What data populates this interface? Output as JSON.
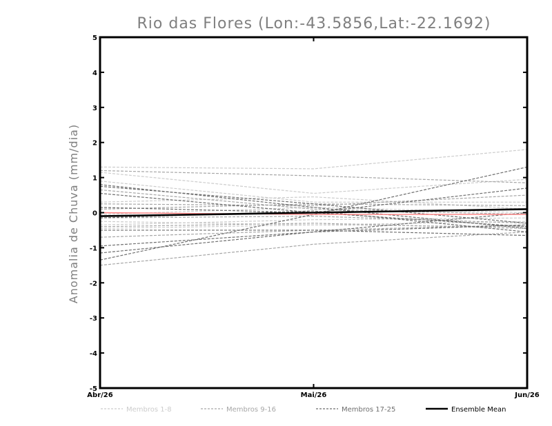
{
  "chart_data": {
    "type": "line",
    "title": "Rio das Flores (Lon:-43.5856,Lat:-22.1692)",
    "xlabel": "",
    "ylabel": "Anomalia de Chuva (mm/dia)",
    "categories": [
      "Abr/26",
      "Mai/26",
      "Jun/26"
    ],
    "ylim": [
      -5,
      5
    ],
    "yticks": [
      "5",
      "4",
      "3",
      "2",
      "1",
      "0",
      "-1",
      "-2",
      "-3",
      "-4",
      "-5"
    ],
    "grid": false,
    "legend_placement": "bottom",
    "groups": [
      {
        "name": "Membros 1-8",
        "color": "#cccccc",
        "style": "dashed",
        "series": [
          {
            "values": [
              1.3,
              1.25,
              1.8
            ]
          },
          {
            "values": [
              1.15,
              0.55,
              0.95
            ]
          },
          {
            "values": [
              0.9,
              0.3,
              0.3
            ]
          },
          {
            "values": [
              0.3,
              0.45,
              0.1
            ]
          },
          {
            "values": [
              -0.05,
              0.15,
              0.0
            ]
          },
          {
            "values": [
              -0.25,
              -0.35,
              -0.25
            ]
          },
          {
            "values": [
              -0.35,
              -0.2,
              -0.15
            ]
          },
          {
            "values": [
              -0.45,
              -0.35,
              -0.4
            ]
          }
        ]
      },
      {
        "name": "Membros 9-16",
        "color": "#a6a6a6",
        "style": "dashed",
        "series": [
          {
            "values": [
              1.2,
              1.05,
              0.85
            ]
          },
          {
            "values": [
              0.65,
              0.1,
              -0.05
            ]
          },
          {
            "values": [
              0.25,
              0.2,
              0.5
            ]
          },
          {
            "values": [
              0.1,
              0.25,
              0.2
            ]
          },
          {
            "values": [
              -0.15,
              -0.1,
              -0.3
            ]
          },
          {
            "values": [
              -0.4,
              -0.3,
              -0.45
            ]
          },
          {
            "values": [
              -0.7,
              -0.5,
              -0.35
            ]
          },
          {
            "values": [
              -1.5,
              -0.9,
              -0.55
            ]
          }
        ]
      },
      {
        "name": "Membros 17-25",
        "color": "#6e6e6e",
        "style": "dashed",
        "series": [
          {
            "values": [
              0.8,
              0.15,
              -0.45
            ]
          },
          {
            "values": [
              0.75,
              0.25,
              -0.3
            ]
          },
          {
            "values": [
              0.55,
              0.0,
              -0.4
            ]
          },
          {
            "values": [
              0.15,
              0.0,
              0.7
            ]
          },
          {
            "values": [
              -0.15,
              0.05,
              -0.55
            ]
          },
          {
            "values": [
              -0.5,
              -0.5,
              -0.65
            ]
          },
          {
            "values": [
              -0.95,
              -0.55,
              -0.35
            ]
          },
          {
            "values": [
              -1.15,
              -0.55,
              0.0
            ]
          },
          {
            "values": [
              -1.35,
              -0.05,
              1.3
            ]
          }
        ]
      }
    ],
    "highlight": {
      "color": "#ff8080",
      "values": [
        0.0,
        -0.05,
        -0.05
      ]
    },
    "ensemble_mean": {
      "name": "Ensemble Mean",
      "color": "#000000",
      "values": [
        -0.1,
        0.0,
        0.1
      ]
    }
  }
}
